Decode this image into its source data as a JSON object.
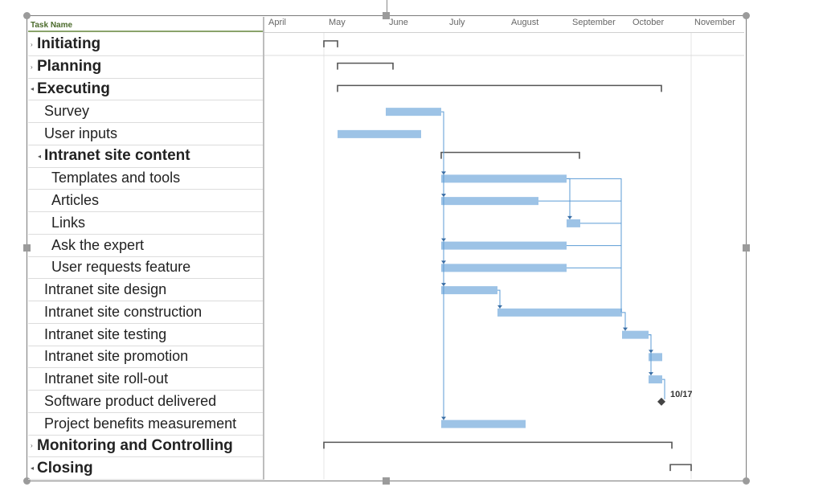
{
  "header": {
    "task_name": "Task Name"
  },
  "months": [
    "April",
    "May",
    "June",
    "July",
    "August",
    "September",
    "October",
    "November"
  ],
  "tasks": [
    {
      "label": "Initiating",
      "level": 0,
      "summary": true,
      "arrow": "›"
    },
    {
      "label": "Planning",
      "level": 0,
      "summary": true,
      "arrow": "›"
    },
    {
      "label": "Executing",
      "level": 0,
      "summary": true,
      "arrow": "◂"
    },
    {
      "label": "Survey",
      "level": 1,
      "summary": false,
      "arrow": ""
    },
    {
      "label": "User inputs",
      "level": 1,
      "summary": false,
      "arrow": ""
    },
    {
      "label": "Intranet site content",
      "level": 1,
      "summary": true,
      "arrow": "◂"
    },
    {
      "label": "Templates and tools",
      "level": 2,
      "summary": false,
      "arrow": ""
    },
    {
      "label": "Articles",
      "level": 2,
      "summary": false,
      "arrow": ""
    },
    {
      "label": "Links",
      "level": 2,
      "summary": false,
      "arrow": ""
    },
    {
      "label": "Ask the expert",
      "level": 2,
      "summary": false,
      "arrow": ""
    },
    {
      "label": "User requests feature",
      "level": 2,
      "summary": false,
      "arrow": ""
    },
    {
      "label": "Intranet site design",
      "level": 1,
      "summary": false,
      "arrow": ""
    },
    {
      "label": "Intranet site construction",
      "level": 1,
      "summary": false,
      "arrow": ""
    },
    {
      "label": "Intranet site testing",
      "level": 1,
      "summary": false,
      "arrow": ""
    },
    {
      "label": "Intranet site promotion",
      "level": 1,
      "summary": false,
      "arrow": ""
    },
    {
      "label": "Intranet site roll-out",
      "level": 1,
      "summary": false,
      "arrow": ""
    },
    {
      "label": "Software product delivered",
      "level": 1,
      "summary": false,
      "arrow": ""
    },
    {
      "label": "Project benefits measurement",
      "level": 1,
      "summary": false,
      "arrow": ""
    },
    {
      "label": "Monitoring and Controlling",
      "level": 0,
      "summary": true,
      "arrow": "›"
    },
    {
      "label": "Closing",
      "level": 0,
      "summary": true,
      "arrow": "◂"
    }
  ],
  "milestone": {
    "label": "10/17"
  },
  "colors": {
    "bar": "#9dc3e6",
    "link": "#5b9bd5",
    "summary": "#555555"
  }
}
